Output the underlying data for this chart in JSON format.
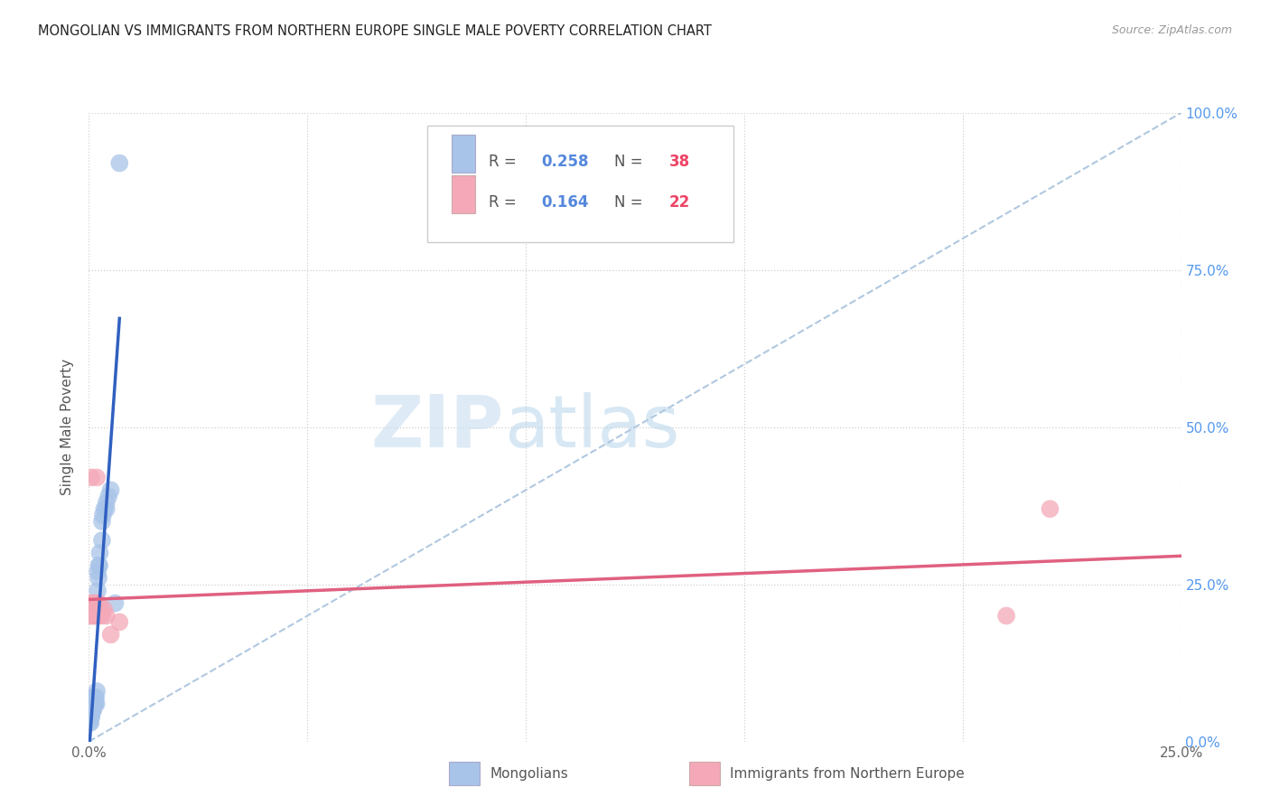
{
  "title": "MONGOLIAN VS IMMIGRANTS FROM NORTHERN EUROPE SINGLE MALE POVERTY CORRELATION CHART",
  "source": "Source: ZipAtlas.com",
  "ylabel_label": "Single Male Poverty",
  "r1": 0.258,
  "n1": 38,
  "r2": 0.164,
  "n2": 22,
  "blue_color": "#a8c4e8",
  "pink_color": "#f4a8b8",
  "blue_line_color": "#3060c0",
  "pink_line_color": "#e06080",
  "watermark_zip": "ZIP",
  "watermark_atlas": "atlas",
  "xlim": [
    0.0,
    0.25
  ],
  "ylim": [
    0.0,
    1.0
  ],
  "blue_x": [
    0.0002,
    0.0003,
    0.0004,
    0.0005,
    0.0005,
    0.0006,
    0.0007,
    0.0008,
    0.0008,
    0.0009,
    0.001,
    0.001,
    0.001,
    0.0012,
    0.0012,
    0.0013,
    0.0014,
    0.0015,
    0.0016,
    0.0017,
    0.0018,
    0.0019,
    0.002,
    0.002,
    0.0022,
    0.0023,
    0.0024,
    0.0025,
    0.003,
    0.003,
    0.0032,
    0.0035,
    0.004,
    0.004,
    0.0045,
    0.005,
    0.006,
    0.007
  ],
  "blue_y": [
    0.03,
    0.04,
    0.03,
    0.04,
    0.05,
    0.04,
    0.05,
    0.05,
    0.06,
    0.05,
    0.06,
    0.07,
    0.05,
    0.06,
    0.07,
    0.06,
    0.07,
    0.06,
    0.07,
    0.06,
    0.08,
    0.22,
    0.24,
    0.27,
    0.26,
    0.28,
    0.28,
    0.3,
    0.32,
    0.35,
    0.36,
    0.37,
    0.37,
    0.38,
    0.39,
    0.4,
    0.22,
    0.92
  ],
  "pink_x": [
    0.0002,
    0.0004,
    0.0005,
    0.0007,
    0.0008,
    0.001,
    0.0012,
    0.0014,
    0.0015,
    0.0016,
    0.0018,
    0.002,
    0.002,
    0.0022,
    0.0025,
    0.003,
    0.0035,
    0.004,
    0.005,
    0.007,
    0.21,
    0.22
  ],
  "pink_y": [
    0.22,
    0.2,
    0.42,
    0.2,
    0.21,
    0.22,
    0.2,
    0.21,
    0.2,
    0.22,
    0.42,
    0.2,
    0.21,
    0.22,
    0.21,
    0.2,
    0.21,
    0.2,
    0.17,
    0.19,
    0.2,
    0.37
  ]
}
